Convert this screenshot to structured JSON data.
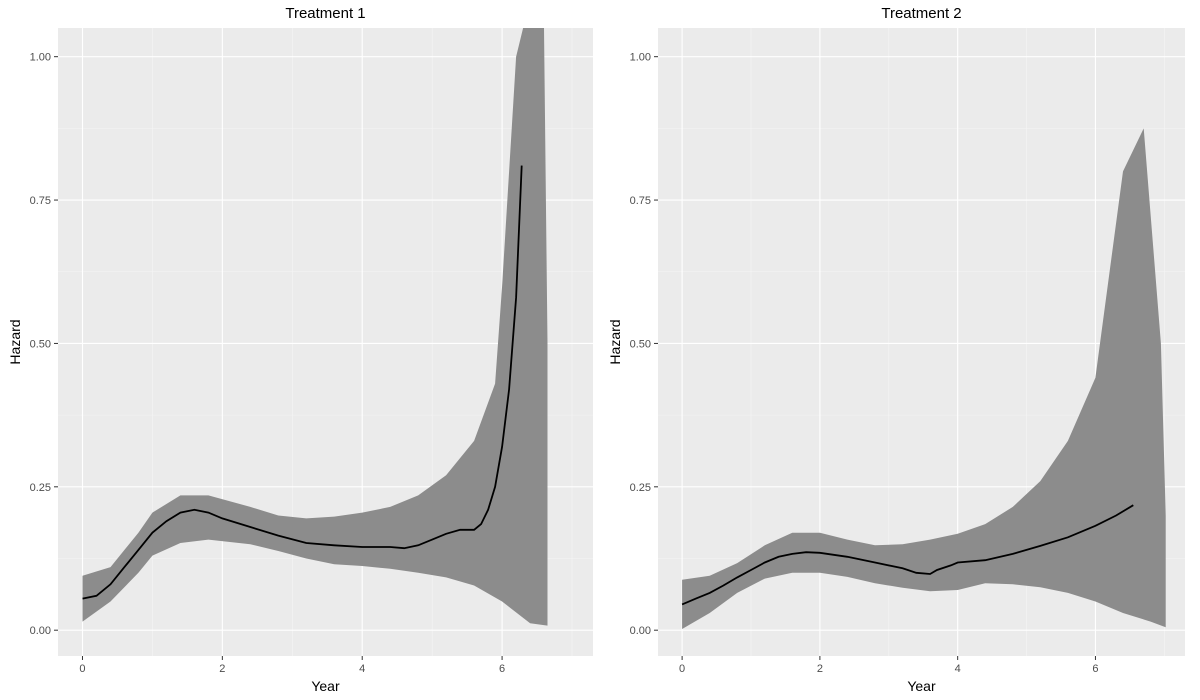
{
  "chart_data": [
    {
      "type": "line",
      "title": "Treatment 1",
      "xlabel": "Year",
      "ylabel": "Hazard",
      "xlim": [
        -0.35,
        7.3
      ],
      "ylim": [
        -0.045,
        1.05
      ],
      "xticks": [
        {
          "v": 0,
          "label": "0"
        },
        {
          "v": 2,
          "label": "2"
        },
        {
          "v": 4,
          "label": "4"
        },
        {
          "v": 6,
          "label": "6"
        }
      ],
      "yticks": [
        {
          "v": 0,
          "label": "0.00"
        },
        {
          "v": 0.25,
          "label": "0.25"
        },
        {
          "v": 0.5,
          "label": "0.50"
        },
        {
          "v": 0.75,
          "label": "0.75"
        },
        {
          "v": 1,
          "label": "1.00"
        }
      ],
      "grid": true,
      "series": [
        {
          "values": [
            [
              0,
              0.055
            ],
            [
              0.2,
              0.06
            ],
            [
              0.4,
              0.08
            ],
            [
              0.6,
              0.11
            ],
            [
              0.8,
              0.14
            ],
            [
              1.0,
              0.17
            ],
            [
              1.2,
              0.19
            ],
            [
              1.4,
              0.205
            ],
            [
              1.6,
              0.21
            ],
            [
              1.8,
              0.205
            ],
            [
              2.0,
              0.195
            ],
            [
              2.4,
              0.18
            ],
            [
              2.8,
              0.165
            ],
            [
              3.2,
              0.152
            ],
            [
              3.6,
              0.148
            ],
            [
              4.0,
              0.145
            ],
            [
              4.4,
              0.145
            ],
            [
              4.6,
              0.143
            ],
            [
              4.8,
              0.148
            ],
            [
              5.0,
              0.158
            ],
            [
              5.2,
              0.168
            ],
            [
              5.4,
              0.175
            ],
            [
              5.6,
              0.175
            ],
            [
              5.7,
              0.185
            ],
            [
              5.8,
              0.21
            ],
            [
              5.9,
              0.25
            ],
            [
              6.0,
              0.32
            ],
            [
              6.1,
              0.42
            ],
            [
              6.2,
              0.58
            ],
            [
              6.28,
              0.81
            ]
          ],
          "band_upper": [
            [
              0,
              0.095
            ],
            [
              0.4,
              0.11
            ],
            [
              0.8,
              0.17
            ],
            [
              1.0,
              0.205
            ],
            [
              1.4,
              0.235
            ],
            [
              1.8,
              0.235
            ],
            [
              2.4,
              0.215
            ],
            [
              2.8,
              0.2
            ],
            [
              3.2,
              0.195
            ],
            [
              3.6,
              0.198
            ],
            [
              4.0,
              0.205
            ],
            [
              4.4,
              0.215
            ],
            [
              4.8,
              0.235
            ],
            [
              5.2,
              0.27
            ],
            [
              5.6,
              0.33
            ],
            [
              5.9,
              0.43
            ],
            [
              6.0,
              0.6
            ],
            [
              6.1,
              0.8
            ],
            [
              6.2,
              1.0
            ],
            [
              6.3,
              1.05
            ],
            [
              6.6,
              1.05
            ],
            [
              6.65,
              0.5
            ]
          ],
          "band_lower": [
            [
              0,
              0.015
            ],
            [
              0.4,
              0.05
            ],
            [
              0.8,
              0.1
            ],
            [
              1.0,
              0.13
            ],
            [
              1.4,
              0.152
            ],
            [
              1.8,
              0.158
            ],
            [
              2.4,
              0.15
            ],
            [
              2.8,
              0.138
            ],
            [
              3.2,
              0.125
            ],
            [
              3.6,
              0.115
            ],
            [
              4.0,
              0.112
            ],
            [
              4.4,
              0.107
            ],
            [
              4.8,
              0.1
            ],
            [
              5.2,
              0.092
            ],
            [
              5.6,
              0.078
            ],
            [
              6.0,
              0.05
            ],
            [
              6.4,
              0.012
            ],
            [
              6.65,
              0.008
            ]
          ]
        }
      ]
    },
    {
      "type": "line",
      "title": "Treatment 2",
      "xlabel": "Year",
      "ylabel": "Hazard",
      "xlim": [
        -0.35,
        7.3
      ],
      "ylim": [
        -0.045,
        1.05
      ],
      "xticks": [
        {
          "v": 0,
          "label": "0"
        },
        {
          "v": 2,
          "label": "2"
        },
        {
          "v": 4,
          "label": "4"
        },
        {
          "v": 6,
          "label": "6"
        }
      ],
      "yticks": [
        {
          "v": 0,
          "label": "0.00"
        },
        {
          "v": 0.25,
          "label": "0.25"
        },
        {
          "v": 0.5,
          "label": "0.50"
        },
        {
          "v": 0.75,
          "label": "0.75"
        },
        {
          "v": 1,
          "label": "1.00"
        }
      ],
      "grid": true,
      "series": [
        {
          "values": [
            [
              0,
              0.045
            ],
            [
              0.2,
              0.055
            ],
            [
              0.4,
              0.065
            ],
            [
              0.6,
              0.078
            ],
            [
              0.8,
              0.092
            ],
            [
              1.0,
              0.105
            ],
            [
              1.2,
              0.118
            ],
            [
              1.4,
              0.128
            ],
            [
              1.6,
              0.133
            ],
            [
              1.8,
              0.136
            ],
            [
              2.0,
              0.135
            ],
            [
              2.4,
              0.128
            ],
            [
              2.8,
              0.118
            ],
            [
              3.2,
              0.108
            ],
            [
              3.4,
              0.1
            ],
            [
              3.6,
              0.098
            ],
            [
              3.7,
              0.105
            ],
            [
              3.9,
              0.113
            ],
            [
              4.0,
              0.118
            ],
            [
              4.4,
              0.122
            ],
            [
              4.8,
              0.133
            ],
            [
              5.2,
              0.147
            ],
            [
              5.6,
              0.162
            ],
            [
              6.0,
              0.182
            ],
            [
              6.3,
              0.2
            ],
            [
              6.55,
              0.218
            ]
          ],
          "band_upper": [
            [
              0,
              0.088
            ],
            [
              0.4,
              0.095
            ],
            [
              0.8,
              0.117
            ],
            [
              1.2,
              0.148
            ],
            [
              1.6,
              0.17
            ],
            [
              2.0,
              0.17
            ],
            [
              2.4,
              0.158
            ],
            [
              2.8,
              0.148
            ],
            [
              3.2,
              0.15
            ],
            [
              3.6,
              0.158
            ],
            [
              4.0,
              0.168
            ],
            [
              4.4,
              0.185
            ],
            [
              4.8,
              0.215
            ],
            [
              5.2,
              0.26
            ],
            [
              5.6,
              0.33
            ],
            [
              6.0,
              0.44
            ],
            [
              6.4,
              0.8
            ],
            [
              6.7,
              0.875
            ],
            [
              6.95,
              0.5
            ],
            [
              7.02,
              0.2
            ]
          ],
          "band_lower": [
            [
              0,
              0.002
            ],
            [
              0.4,
              0.03
            ],
            [
              0.8,
              0.065
            ],
            [
              1.2,
              0.09
            ],
            [
              1.6,
              0.1
            ],
            [
              2.0,
              0.1
            ],
            [
              2.4,
              0.093
            ],
            [
              2.8,
              0.082
            ],
            [
              3.2,
              0.074
            ],
            [
              3.6,
              0.068
            ],
            [
              4.0,
              0.07
            ],
            [
              4.4,
              0.082
            ],
            [
              4.8,
              0.08
            ],
            [
              5.2,
              0.075
            ],
            [
              5.6,
              0.065
            ],
            [
              6.0,
              0.05
            ],
            [
              6.4,
              0.03
            ],
            [
              6.8,
              0.015
            ],
            [
              7.02,
              0.005
            ]
          ]
        }
      ]
    }
  ]
}
